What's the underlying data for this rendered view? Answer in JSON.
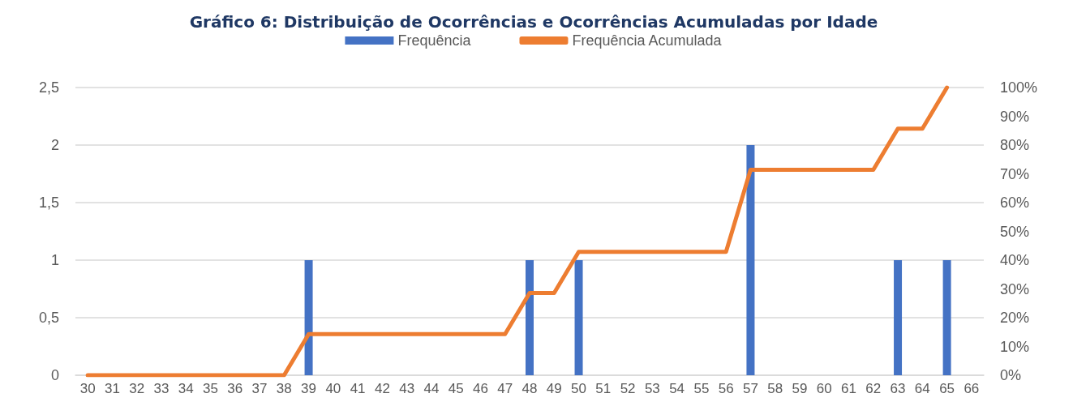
{
  "chart_data": {
    "type": "bar",
    "title": "Gráfico 6: Distribuição de Ocorrências e Ocorrências Acumuladas por Idade",
    "categories": [
      "30",
      "31",
      "32",
      "33",
      "34",
      "35",
      "36",
      "37",
      "38",
      "39",
      "40",
      "41",
      "42",
      "43",
      "44",
      "45",
      "46",
      "47",
      "48",
      "49",
      "50",
      "51",
      "52",
      "53",
      "54",
      "55",
      "56",
      "57",
      "58",
      "59",
      "60",
      "61",
      "62",
      "63",
      "64",
      "65",
      "66"
    ],
    "series": [
      {
        "name": "Frequência",
        "color": "#4472c4",
        "values": [
          0,
          0,
          0,
          0,
          0,
          0,
          0,
          0,
          0,
          1,
          0,
          0,
          0,
          0,
          0,
          0,
          0,
          0,
          1,
          0,
          1,
          0,
          0,
          0,
          0,
          0,
          0,
          2,
          0,
          0,
          0,
          0,
          0,
          1,
          0,
          1,
          0
        ]
      },
      {
        "name": "Frequência Acumulada",
        "type": "line",
        "axis": "y2",
        "color": "#ed7d31",
        "values": [
          0,
          0,
          0,
          0,
          0,
          0,
          0,
          0,
          0,
          14.3,
          14.3,
          14.3,
          14.3,
          14.3,
          14.3,
          14.3,
          14.3,
          14.3,
          28.6,
          28.6,
          42.9,
          42.9,
          42.9,
          42.9,
          42.9,
          42.9,
          42.9,
          71.4,
          71.4,
          71.4,
          71.4,
          71.4,
          71.4,
          85.7,
          85.7,
          100,
          null
        ]
      }
    ],
    "ylim": [
      0,
      2.5
    ],
    "yticks": [
      {
        "value": 0,
        "label": "0"
      },
      {
        "value": 0.5,
        "label": "0,5"
      },
      {
        "value": 1,
        "label": "1"
      },
      {
        "value": 1.5,
        "label": "1,5"
      },
      {
        "value": 2,
        "label": "2"
      },
      {
        "value": 2.5,
        "label": "2,5"
      }
    ],
    "y2lim": [
      0,
      100
    ],
    "y2ticks": [
      {
        "value": 0,
        "label": "0%"
      },
      {
        "value": 10,
        "label": "10%"
      },
      {
        "value": 20,
        "label": "20%"
      },
      {
        "value": 30,
        "label": "30%"
      },
      {
        "value": 40,
        "label": "40%"
      },
      {
        "value": 50,
        "label": "50%"
      },
      {
        "value": 60,
        "label": "60%"
      },
      {
        "value": 70,
        "label": "70%"
      },
      {
        "value": 80,
        "label": "80%"
      },
      {
        "value": 90,
        "label": "90%"
      },
      {
        "value": 100,
        "label": "100%"
      }
    ],
    "grid": "y",
    "legend": "top",
    "marker": "none",
    "line_style": "solid"
  }
}
